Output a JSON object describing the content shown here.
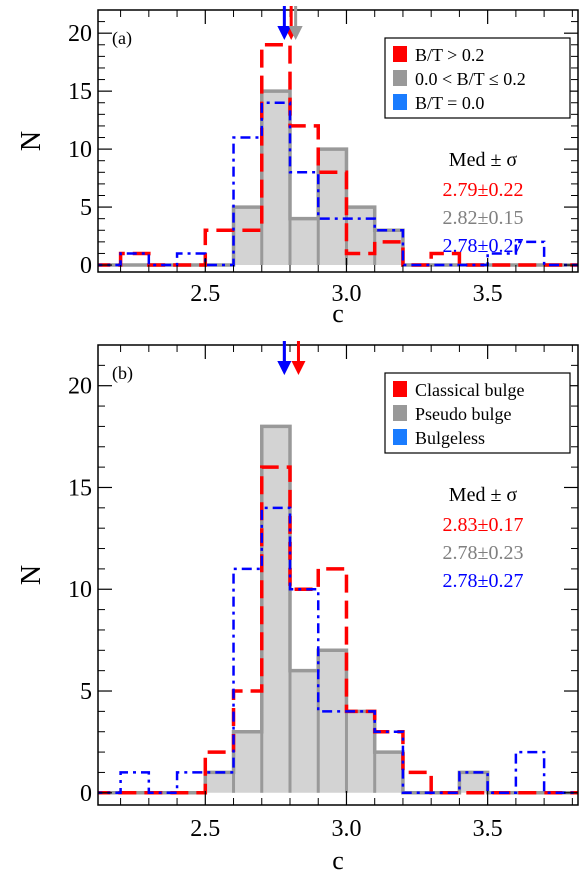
{
  "chart_data": [
    {
      "type": "histogram",
      "panel_label": "(a)",
      "xlabel": "c",
      "ylabel": "N",
      "xlim": [
        2.12,
        3.82
      ],
      "ylim": [
        -0.6,
        22
      ],
      "xticks": [
        2.5,
        3.0,
        3.5
      ],
      "xtick_labels": [
        "2.5",
        "3.0",
        "3.5"
      ],
      "yticks": [
        0,
        5,
        10,
        15,
        20
      ],
      "ytick_labels": [
        "0",
        "5",
        "10",
        "15",
        "20"
      ],
      "bin_edges": [
        2.1,
        2.2,
        2.3,
        2.4,
        2.5,
        2.6,
        2.7,
        2.8,
        2.9,
        3.0,
        3.1,
        3.2,
        3.3,
        3.4,
        3.5,
        3.6,
        3.7,
        3.8,
        3.9
      ],
      "series": [
        {
          "name": "0.0 < B/T ≤ 0.2",
          "color": "#999999",
          "fill": "#d3d3d3",
          "style": "solid",
          "counts": [
            0,
            0,
            0,
            0,
            0,
            5,
            15,
            4,
            10,
            5,
            3,
            0,
            0,
            0,
            0,
            0,
            0,
            0
          ],
          "median": 2.82
        },
        {
          "name": "B/T > 0.2",
          "color": "#ff0000",
          "style": "dashed",
          "counts": [
            0,
            1,
            0,
            0,
            3,
            3,
            19,
            12,
            8,
            1,
            2,
            0,
            1,
            0,
            0,
            0,
            0,
            0
          ],
          "median": 2.79
        },
        {
          "name": "B/T = 0.0",
          "color": "#0000ff",
          "style": "dashdot",
          "counts": [
            0,
            1,
            0,
            1,
            0,
            11,
            14,
            8,
            4,
            4,
            3,
            0,
            0,
            0,
            1,
            2,
            0,
            0
          ],
          "median": 2.78
        }
      ],
      "legend": {
        "position": "top-right",
        "entries": [
          {
            "label": "B/T > 0.2",
            "color": "#ff0000"
          },
          {
            "label": "0.0 < B/T ≤ 0.2",
            "color": "#999999"
          },
          {
            "label": "B/T = 0.0",
            "color": "#1a7cff"
          }
        ]
      },
      "stats_title": "Med ± σ",
      "stats": [
        {
          "text": "2.79±0.22",
          "color": "#ff0000"
        },
        {
          "text": "2.82±0.15",
          "color": "#808080"
        },
        {
          "text": "2.78±0.27",
          "color": "#0000ff"
        }
      ],
      "median_arrows": [
        {
          "value": 2.79,
          "color": "#ff0000"
        },
        {
          "value": 2.78,
          "color": "#0000ff"
        },
        {
          "value": 2.82,
          "color": "#999999"
        }
      ]
    },
    {
      "type": "histogram",
      "panel_label": "(b)",
      "xlabel": "c",
      "ylabel": "N",
      "xlim": [
        2.12,
        3.82
      ],
      "ylim": [
        -0.6,
        22
      ],
      "xticks": [
        2.5,
        3.0,
        3.5
      ],
      "xtick_labels": [
        "2.5",
        "3.0",
        "3.5"
      ],
      "yticks": [
        0,
        5,
        10,
        15,
        20
      ],
      "ytick_labels": [
        "0",
        "5",
        "10",
        "15",
        "20"
      ],
      "bin_edges": [
        2.1,
        2.2,
        2.3,
        2.4,
        2.5,
        2.6,
        2.7,
        2.8,
        2.9,
        3.0,
        3.1,
        3.2,
        3.3,
        3.4,
        3.5,
        3.6,
        3.7,
        3.8,
        3.9
      ],
      "series": [
        {
          "name": "Pseudo bulge",
          "color": "#999999",
          "fill": "#d3d3d3",
          "style": "solid",
          "counts": [
            0,
            0,
            0,
            0,
            1,
            3,
            18,
            6,
            7,
            4,
            2,
            0,
            0,
            1,
            0,
            0,
            0,
            0
          ],
          "median": 2.78
        },
        {
          "name": "Classical bulge",
          "color": "#ff0000",
          "style": "dashed",
          "counts": [
            0,
            0,
            0,
            0,
            2,
            5,
            16,
            10,
            11,
            4,
            3,
            1,
            0,
            0,
            0,
            0,
            0,
            0
          ],
          "median": 2.83
        },
        {
          "name": "Bulgeless",
          "color": "#0000ff",
          "style": "dashdot",
          "counts": [
            0,
            1,
            0,
            1,
            1,
            11,
            14,
            10,
            4,
            4,
            3,
            0,
            0,
            1,
            0,
            2,
            0,
            0
          ],
          "median": 2.78
        }
      ],
      "legend": {
        "position": "top-right",
        "entries": [
          {
            "label": "Classical bulge",
            "color": "#ff0000"
          },
          {
            "label": "Pseudo bulge",
            "color": "#999999"
          },
          {
            "label": "Bulgeless",
            "color": "#1a7cff"
          }
        ]
      },
      "stats_title": "Med ± σ",
      "stats": [
        {
          "text": "2.83±0.17",
          "color": "#ff0000"
        },
        {
          "text": "2.78±0.23",
          "color": "#808080"
        },
        {
          "text": "2.78±0.27",
          "color": "#0000ff"
        }
      ],
      "median_arrows": [
        {
          "value": 2.78,
          "color": "#999999"
        },
        {
          "value": 2.78,
          "color": "#0000ff"
        },
        {
          "value": 2.83,
          "color": "#ff0000"
        }
      ]
    }
  ]
}
